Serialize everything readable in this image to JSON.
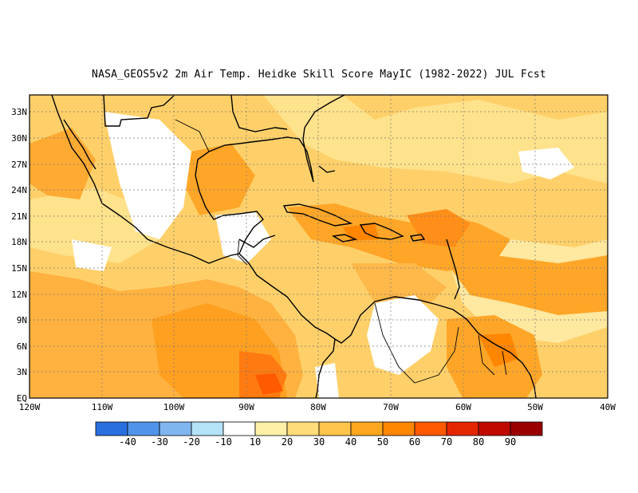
{
  "title": "NASA_GEOS5v2  2m Air Temp. Heidke Skill Score MayIC (1982-2022) JUL Fcst",
  "lat_labels": [
    "33N",
    "30N",
    "27N",
    "24N",
    "21N",
    "18N",
    "15N",
    "12N",
    "9N",
    "6N",
    "3N",
    "EQ"
  ],
  "lon_labels": [
    "120W",
    "110W",
    "100W",
    "90W",
    "80W",
    "70W",
    "60W",
    "50W",
    "40W"
  ],
  "colorbar": {
    "labels": [
      "-40",
      "-30",
      "-20",
      "-10",
      "10",
      "20",
      "30",
      "40",
      "50",
      "60",
      "70",
      "80",
      "90"
    ],
    "colors": [
      "#2a6fe0",
      "#4f94ea",
      "#7fb6f0",
      "#b4e2f7",
      "#ffffff",
      "#fff0a8",
      "#ffdc7a",
      "#ffc44c",
      "#ffa81f",
      "#ff8600",
      "#ff5a00",
      "#e42600",
      "#c00a00",
      "#9a0000"
    ]
  },
  "map": {
    "lat_range": [
      0,
      35
    ],
    "lon_range": [
      -120,
      -40
    ],
    "background_color": "#ffd06a",
    "coastline_color": "#000000"
  }
}
